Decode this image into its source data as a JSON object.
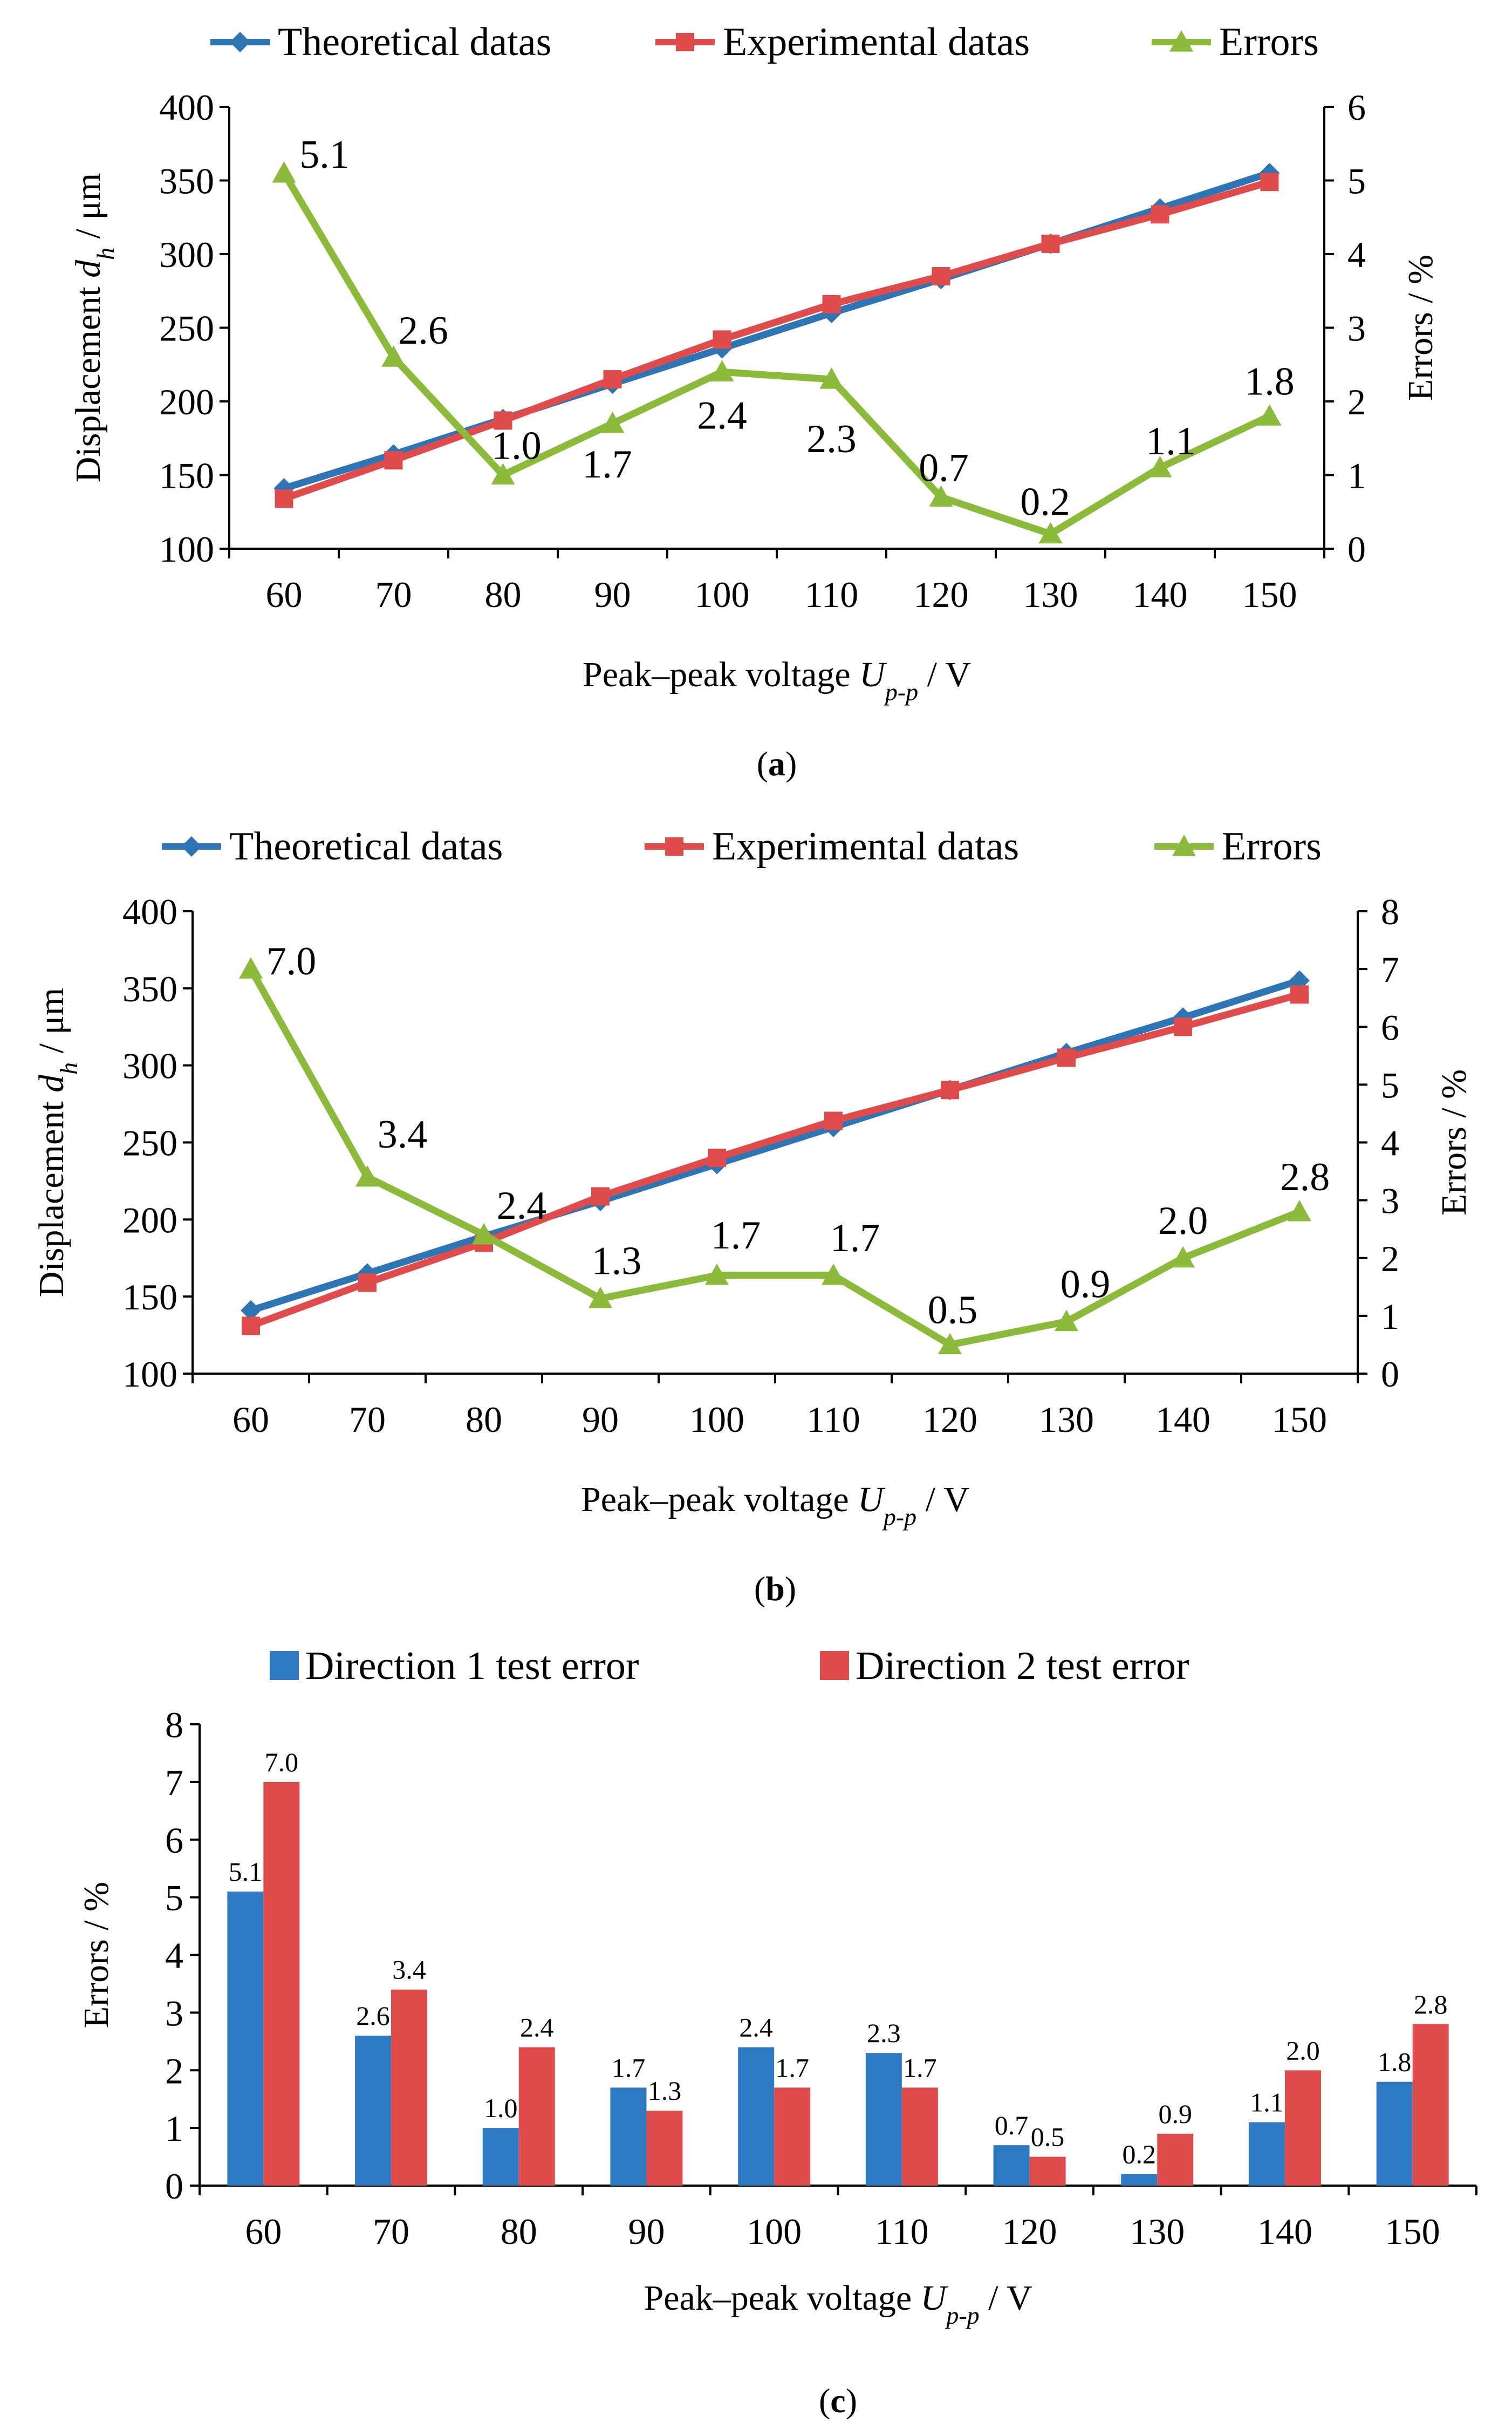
{
  "chart_data": [
    {
      "type": "line",
      "caption": "(a)",
      "x": [
        60,
        70,
        80,
        90,
        100,
        110,
        120,
        130,
        140,
        150
      ],
      "xlabel": "Peak–peak voltage Up-p / V",
      "ylabel_left": "Displacement dh / μm",
      "ylabel_right": "Errors / %",
      "ylim_left": [
        100,
        400
      ],
      "yticks_left": [
        "100",
        "150",
        "200",
        "250",
        "300",
        "350",
        "400"
      ],
      "ylim_right": [
        0,
        6
      ],
      "yticks_right": [
        "0",
        "1",
        "2",
        "3",
        "4",
        "5",
        "6"
      ],
      "legend_position": "top",
      "series": [
        {
          "name": "Theoretical datas",
          "axis": "left",
          "color": "#2E75B6",
          "marker": "diamond",
          "values": [
            141,
            164,
            188,
            212,
            236,
            260,
            283,
            307,
            331,
            355
          ]
        },
        {
          "name": "Experimental datas",
          "axis": "left",
          "color": "#E04C4C",
          "marker": "square",
          "values": [
            134,
            160,
            187,
            215,
            242,
            266,
            285,
            307,
            327,
            349
          ]
        },
        {
          "name": "Errors",
          "axis": "right",
          "color": "#8CBB3C",
          "marker": "triangle",
          "values": [
            5.1,
            2.6,
            1.0,
            1.7,
            2.4,
            2.3,
            0.7,
            0.2,
            1.1,
            1.8
          ],
          "labels": [
            "5.1",
            "2.6",
            "1.0",
            "1.7",
            "2.4",
            "2.3",
            "0.7",
            "0.2",
            "1.1",
            "1.8"
          ]
        }
      ]
    },
    {
      "type": "line",
      "caption": "(b)",
      "x": [
        60,
        70,
        80,
        90,
        100,
        110,
        120,
        130,
        140,
        150
      ],
      "xlabel": "Peak–peak voltage Up-p / V",
      "ylabel_left": "Displacement dh / μm",
      "ylabel_right": "Errors / %",
      "ylim_left": [
        100,
        400
      ],
      "yticks_left": [
        "100",
        "150",
        "200",
        "250",
        "300",
        "350",
        "400"
      ],
      "ylim_right": [
        0,
        8
      ],
      "yticks_right": [
        "0",
        "1",
        "2",
        "3",
        "4",
        "5",
        "6",
        "7",
        "8"
      ],
      "legend_position": "top",
      "series": [
        {
          "name": "Theoretical datas",
          "axis": "left",
          "color": "#2E75B6",
          "marker": "diamond",
          "values": [
            141,
            165,
            189,
            212,
            236,
            260,
            284,
            308,
            331,
            355
          ]
        },
        {
          "name": "Experimental datas",
          "axis": "left",
          "color": "#E04C4C",
          "marker": "square",
          "values": [
            131,
            159,
            185,
            215,
            240,
            264,
            284,
            305,
            325,
            346
          ]
        },
        {
          "name": "Errors",
          "axis": "right",
          "color": "#8CBB3C",
          "marker": "triangle",
          "values": [
            7.0,
            3.4,
            2.4,
            1.3,
            1.7,
            1.7,
            0.5,
            0.9,
            2.0,
            2.8
          ],
          "labels": [
            "7.0",
            "3.4",
            "2.4",
            "1.3",
            "1.7",
            "1.7",
            "0.5",
            "0.9",
            "2.0",
            "2.8"
          ]
        }
      ]
    },
    {
      "type": "bar",
      "caption": "(c)",
      "categories": [
        "60",
        "70",
        "80",
        "90",
        "100",
        "110",
        "120",
        "130",
        "140",
        "150"
      ],
      "xlabel": "Peak–peak voltage Up-p / V",
      "ylabel": "Errors / %",
      "ylim": [
        0,
        8
      ],
      "yticks": [
        "0",
        "1",
        "2",
        "3",
        "4",
        "5",
        "6",
        "7",
        "8"
      ],
      "legend_position": "top",
      "series": [
        {
          "name": "Direction 1 test error",
          "color": "#2E7BC4",
          "values": [
            5.1,
            2.6,
            1.0,
            1.7,
            2.4,
            2.3,
            0.7,
            0.2,
            1.1,
            1.8
          ],
          "labels": [
            "5.1",
            "2.6",
            "1.0",
            "1.7",
            "2.4",
            "2.3",
            "0.7",
            "0.2",
            "1.1",
            "1.8"
          ]
        },
        {
          "name": "Direction 2 test error",
          "color": "#E04C4C",
          "values": [
            7.0,
            3.4,
            2.4,
            1.3,
            1.7,
            1.7,
            0.5,
            0.9,
            2.0,
            2.8
          ],
          "labels": [
            "7.0",
            "3.4",
            "2.4",
            "1.3",
            "1.7",
            "1.7",
            "0.5",
            "0.9",
            "2.0",
            "2.8"
          ]
        }
      ]
    }
  ]
}
